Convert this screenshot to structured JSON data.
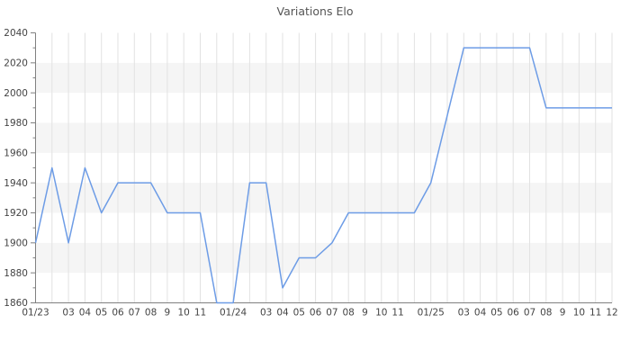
{
  "chart_data": {
    "type": "line",
    "title": "Variations Elo",
    "xlabel": "",
    "ylabel": "",
    "x_labels": [
      "01/23",
      "",
      "03",
      "04",
      "05",
      "06",
      "07",
      "08",
      "9",
      "10",
      "11",
      "",
      "01/24",
      "",
      "03",
      "04",
      "05",
      "06",
      "07",
      "08",
      "9",
      "10",
      "11",
      "",
      "01/25",
      "",
      "03",
      "04",
      "05",
      "06",
      "07",
      "08",
      "9",
      "10",
      "11",
      "12"
    ],
    "values": [
      1900,
      1950,
      1900,
      1950,
      1920,
      1940,
      1940,
      1940,
      1920,
      1920,
      1920,
      1860,
      1860,
      1940,
      1940,
      1870,
      1890,
      1890,
      1900,
      1920,
      1920,
      1920,
      1920,
      1920,
      1940,
      1985,
      2030,
      2030,
      2030,
      2030,
      2030,
      1990,
      1990,
      1990,
      1990,
      1990
    ],
    "y_tick_labels": [
      "1860",
      "1880",
      "1900",
      "1920",
      "1940",
      "1960",
      "1980",
      "2000",
      "2020",
      "2040"
    ],
    "ylim": [
      1860,
      2040
    ],
    "y_major_step": 20,
    "y_minor_step": 10,
    "grid": "on",
    "legend": "none",
    "colors": {
      "line": "#6d9ce6",
      "band_alt": "#f5f5f5",
      "band_base": "#ffffff",
      "vgrid": "#e2e2e2",
      "axis": "#808080",
      "tick": "#808080",
      "tick_label": "#444444",
      "title": "#555555",
      "background": "#ffffff"
    }
  }
}
